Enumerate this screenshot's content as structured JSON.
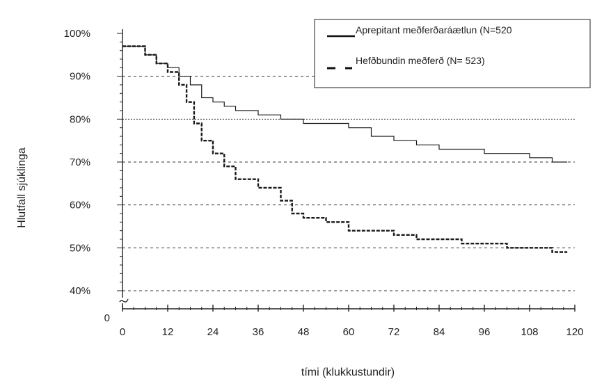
{
  "chart_data": {
    "type": "line",
    "title": "",
    "xlabel": "tími (klukkustundir)",
    "ylabel": "Hlutfall sjúklinga",
    "x_ticks": [
      0,
      12,
      24,
      36,
      48,
      60,
      72,
      84,
      96,
      108,
      120
    ],
    "x_tick_labels": [
      "0",
      "12",
      "24",
      "36",
      "48",
      "60",
      "72",
      "84",
      "96",
      "108",
      "120"
    ],
    "y_ticks": [
      40,
      50,
      60,
      70,
      80,
      90,
      100
    ],
    "y_tick_labels": [
      "40%",
      "50%",
      "60%",
      "70%",
      "80%",
      "90%",
      "100%"
    ],
    "y_axis_break_label": "0",
    "xlim": [
      0,
      120
    ],
    "ylim": [
      40,
      100
    ],
    "y_axis_break": true,
    "grid": "dashed horizontal",
    "legend_position": "top-right",
    "series": [
      {
        "name": "Aprepitant meðferðaráætlun (N=520",
        "style": "solid",
        "color": "#1a1a1a",
        "points": [
          [
            0,
            97
          ],
          [
            3,
            97
          ],
          [
            6,
            95
          ],
          [
            9,
            93
          ],
          [
            12,
            92
          ],
          [
            15,
            90
          ],
          [
            18,
            88
          ],
          [
            21,
            85
          ],
          [
            24,
            84
          ],
          [
            27,
            83
          ],
          [
            30,
            82
          ],
          [
            36,
            81
          ],
          [
            42,
            80
          ],
          [
            48,
            79
          ],
          [
            54,
            79
          ],
          [
            60,
            78
          ],
          [
            66,
            76
          ],
          [
            72,
            75
          ],
          [
            78,
            74
          ],
          [
            84,
            73
          ],
          [
            90,
            73
          ],
          [
            96,
            72
          ],
          [
            102,
            72
          ],
          [
            108,
            71
          ],
          [
            114,
            70
          ],
          [
            118,
            70
          ]
        ]
      },
      {
        "name": "Hefðbundin meðferð (N= 523)",
        "style": "dashed",
        "color": "#1a1a1a",
        "points": [
          [
            0,
            97
          ],
          [
            3,
            97
          ],
          [
            6,
            95
          ],
          [
            9,
            93
          ],
          [
            12,
            91
          ],
          [
            15,
            88
          ],
          [
            17,
            84
          ],
          [
            19,
            79
          ],
          [
            21,
            75
          ],
          [
            24,
            72
          ],
          [
            27,
            69
          ],
          [
            30,
            66
          ],
          [
            36,
            64
          ],
          [
            42,
            61
          ],
          [
            45,
            58
          ],
          [
            48,
            57
          ],
          [
            54,
            56
          ],
          [
            60,
            54
          ],
          [
            66,
            54
          ],
          [
            72,
            53
          ],
          [
            78,
            52
          ],
          [
            84,
            52
          ],
          [
            90,
            51
          ],
          [
            96,
            51
          ],
          [
            102,
            50
          ],
          [
            108,
            50
          ],
          [
            114,
            49
          ],
          [
            118,
            49
          ]
        ]
      }
    ]
  }
}
